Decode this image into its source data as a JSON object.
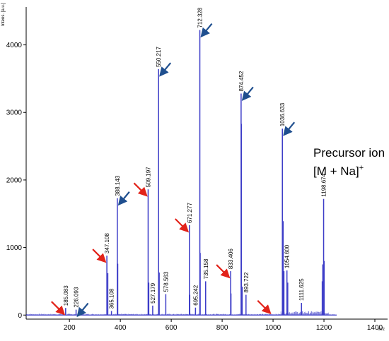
{
  "chart_data": {
    "type": "line",
    "ylabel": "Intens. [a.u.]",
    "xlabel": "m/z",
    "xlim": [
      30,
      1450
    ],
    "ylim": [
      -60,
      4560
    ],
    "x_ticks": [
      200,
      400,
      600,
      800,
      1000,
      1200,
      1400
    ],
    "y_ticks": [
      0,
      1000,
      2000,
      3000,
      4000
    ],
    "grid": false,
    "series": [
      {
        "peaks": [
          {
            "x": 185.083,
            "y": 105,
            "label": "185.083"
          },
          {
            "x": 226.093,
            "y": 80,
            "label": "226.093"
          },
          {
            "x": 347.108,
            "y": 880,
            "label": "347.108"
          },
          {
            "x": 365.108,
            "y": 60,
            "label": "365.108"
          },
          {
            "x": 388.143,
            "y": 1730,
            "label": "388.143"
          },
          {
            "x": 509.197,
            "y": 1860,
            "label": "509.197"
          },
          {
            "x": 527.179,
            "y": 140,
            "label": "527.179"
          },
          {
            "x": 550.217,
            "y": 3640,
            "label": "550.217"
          },
          {
            "x": 578.563,
            "y": 310,
            "label": "578.563"
          },
          {
            "x": 671.277,
            "y": 1330,
            "label": "671.277"
          },
          {
            "x": 695.242,
            "y": 110,
            "label": "695.242"
          },
          {
            "x": 712.328,
            "y": 4220,
            "label": "712.328"
          },
          {
            "x": 735.158,
            "y": 500,
            "label": "735.158"
          },
          {
            "x": 833.406,
            "y": 650,
            "label": "833.406"
          },
          {
            "x": 874.452,
            "y": 3280,
            "label": "874.452"
          },
          {
            "x": 893.722,
            "y": 300,
            "label": "893.722"
          },
          {
            "x": 1036.633,
            "y": 2760,
            "label": "1036.633"
          },
          {
            "x": 1054.6,
            "y": 660,
            "label": "1054.600"
          },
          {
            "x": 1111.625,
            "y": 180,
            "label": "1111.625"
          },
          {
            "x": 1198.674,
            "y": 1720,
            "label": "1198.674"
          }
        ],
        "unlabeled_peaks": [
          {
            "x": 351,
            "y": 620
          },
          {
            "x": 390,
            "y": 760
          },
          {
            "x": 512,
            "y": 480
          },
          {
            "x": 553,
            "y": 630
          },
          {
            "x": 673,
            "y": 300
          },
          {
            "x": 714,
            "y": 920
          },
          {
            "x": 835,
            "y": 320
          },
          {
            "x": 876,
            "y": 2830
          },
          {
            "x": 879,
            "y": 420
          },
          {
            "x": 1040,
            "y": 1390
          },
          {
            "x": 1043,
            "y": 650
          },
          {
            "x": 1058,
            "y": 480
          },
          {
            "x": 1193,
            "y": 500
          },
          {
            "x": 1195,
            "y": 750
          },
          {
            "x": 1201,
            "y": 800
          }
        ]
      }
    ],
    "annotations": {
      "precursor_line1": "Precursor ion",
      "precursor_line2": "[M + Na]",
      "precursor_sup": "+",
      "red_arrow_targets": [
        185.083,
        347.108,
        509.197,
        671.277,
        833.406,
        995
      ],
      "blue_arrow_targets": [
        226.093,
        388.143,
        550.217,
        712.328,
        874.452,
        1036.633
      ]
    },
    "colors": {
      "spectrum": "#3d3dc8",
      "red_arrow": "#e2231a",
      "blue_arrow": "#1f4f8f",
      "axis": "#000000"
    }
  }
}
